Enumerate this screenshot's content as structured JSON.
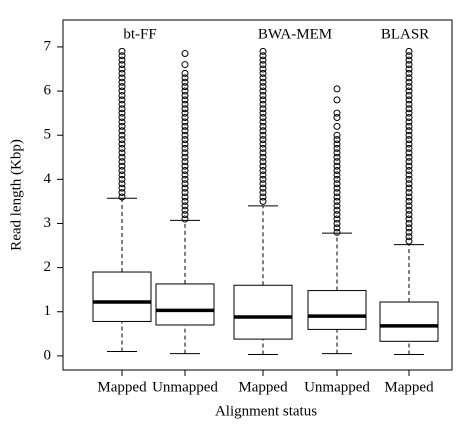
{
  "chart_data": {
    "type": "box",
    "xlabel": "Alignment status",
    "ylabel": "Read length (Kbp)",
    "annotations": [
      "bt-FF",
      "BWA-MEM",
      "BLASR"
    ],
    "categories": [
      "Mapped",
      "Unmapped",
      "Mapped",
      "Unmapped",
      "Mapped"
    ],
    "ylim": [
      -0.32,
      7.61
    ],
    "yticks": [
      0,
      1,
      2,
      3,
      4,
      5,
      6,
      7
    ],
    "color": "#000000",
    "boxes": [
      {
        "low": 0.1,
        "q1": 0.78,
        "median": 1.22,
        "q3": 1.9,
        "high": 3.57,
        "outliers": [
          3.6,
          3.7,
          3.8,
          3.9,
          4.0,
          4.1,
          4.2,
          4.3,
          4.4,
          4.5,
          4.6,
          4.7,
          4.8,
          4.9,
          5.0,
          5.1,
          5.2,
          5.3,
          5.4,
          5.5,
          5.6,
          5.7,
          5.8,
          5.9,
          6.0,
          6.1,
          6.2,
          6.3,
          6.4,
          6.5,
          6.6,
          6.7,
          6.8,
          6.9
        ]
      },
      {
        "low": 0.05,
        "q1": 0.7,
        "median": 1.03,
        "q3": 1.63,
        "high": 3.07,
        "outliers": [
          3.1,
          3.2,
          3.3,
          3.4,
          3.5,
          3.6,
          3.7,
          3.8,
          3.9,
          4.0,
          4.1,
          4.2,
          4.3,
          4.4,
          4.5,
          4.6,
          4.7,
          4.8,
          4.9,
          5.0,
          5.1,
          5.2,
          5.3,
          5.4,
          5.5,
          5.6,
          5.7,
          5.8,
          5.9,
          6.0,
          6.1,
          6.2,
          6.3,
          6.4,
          6.6,
          6.85
        ]
      },
      {
        "low": 0.03,
        "q1": 0.38,
        "median": 0.88,
        "q3": 1.6,
        "high": 3.4,
        "outliers": [
          3.5,
          3.6,
          3.7,
          3.8,
          3.9,
          4.0,
          4.1,
          4.2,
          4.3,
          4.4,
          4.5,
          4.6,
          4.7,
          4.8,
          4.9,
          5.0,
          5.1,
          5.2,
          5.3,
          5.4,
          5.5,
          5.6,
          5.7,
          5.8,
          5.9,
          6.0,
          6.1,
          6.2,
          6.3,
          6.4,
          6.5,
          6.6,
          6.7,
          6.8,
          6.9
        ]
      },
      {
        "low": 0.05,
        "q1": 0.6,
        "median": 0.9,
        "q3": 1.48,
        "high": 2.78,
        "outliers": [
          2.8,
          2.9,
          3.0,
          3.1,
          3.2,
          3.3,
          3.4,
          3.5,
          3.6,
          3.7,
          3.8,
          3.9,
          4.0,
          4.1,
          4.2,
          4.3,
          4.4,
          4.5,
          4.6,
          4.7,
          4.8,
          4.9,
          5.0,
          5.2,
          5.4,
          5.5,
          5.8,
          6.05
        ]
      },
      {
        "low": 0.03,
        "q1": 0.33,
        "median": 0.68,
        "q3": 1.22,
        "high": 2.52,
        "outliers": [
          2.6,
          2.7,
          2.8,
          2.9,
          3.0,
          3.1,
          3.2,
          3.3,
          3.4,
          3.5,
          3.6,
          3.7,
          3.8,
          3.9,
          4.0,
          4.1,
          4.2,
          4.3,
          4.4,
          4.5,
          4.6,
          4.7,
          4.8,
          4.9,
          5.0,
          5.1,
          5.2,
          5.3,
          5.4,
          5.5,
          5.6,
          5.7,
          5.8,
          5.9,
          6.0,
          6.1,
          6.2,
          6.3,
          6.4,
          6.5,
          6.6,
          6.7,
          6.8,
          6.9
        ]
      }
    ]
  }
}
